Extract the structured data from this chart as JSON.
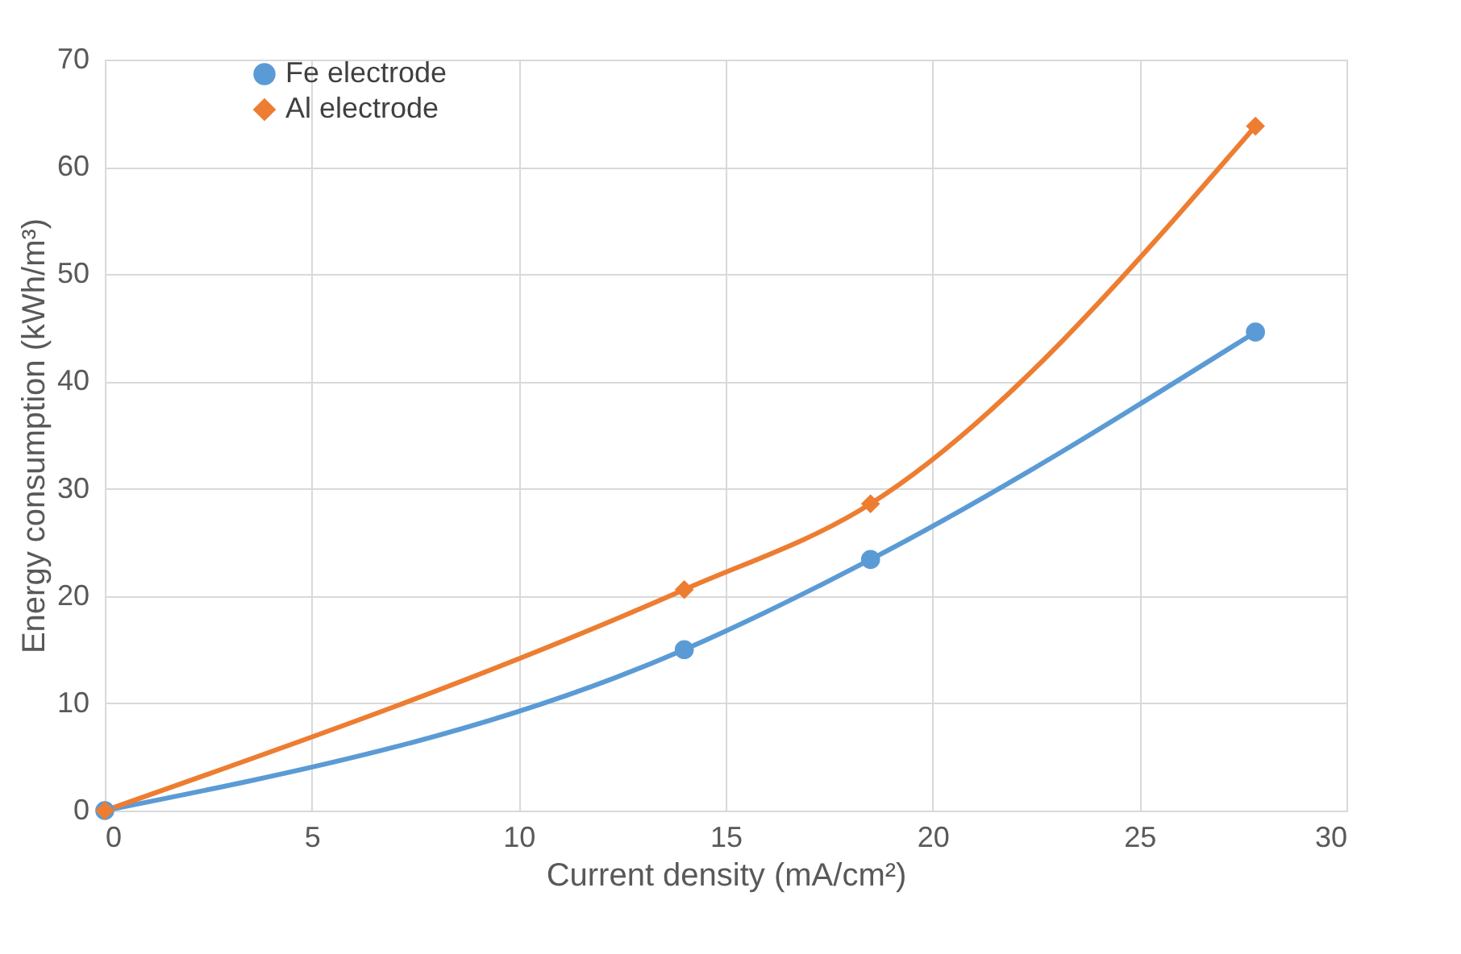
{
  "chart_data": {
    "type": "line",
    "xlabel": "Current density (mA/cm²)",
    "ylabel": "Energy consumption (kWh/m³)",
    "x": [
      0,
      14,
      18.5,
      27.8
    ],
    "series": [
      {
        "name": "Fe electrode",
        "color": "#5b9bd5",
        "marker": "circle",
        "values": [
          0,
          15,
          23.4,
          44.6
        ]
      },
      {
        "name": "Al electrode",
        "color": "#ed7d31",
        "marker": "diamond",
        "values": [
          0,
          20.6,
          28.6,
          63.8
        ]
      }
    ],
    "xlim": [
      0,
      30
    ],
    "xticks": [
      0,
      5,
      10,
      15,
      20,
      25,
      30
    ],
    "ylim": [
      0,
      70
    ],
    "yticks": [
      0,
      10,
      20,
      30,
      40,
      50,
      60,
      70
    ],
    "grid": true,
    "legend": "top left",
    "line_style": "solid"
  }
}
